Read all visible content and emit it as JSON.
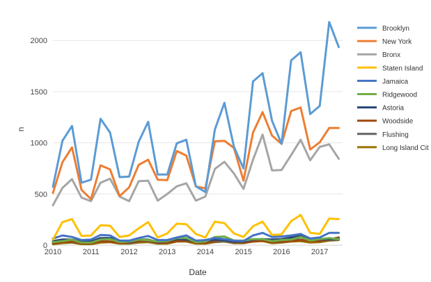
{
  "chart_data": {
    "type": "line",
    "xlabel": "Date",
    "ylabel": "n",
    "xlim": [
      2010.0,
      2017.6
    ],
    "ylim": [
      0,
      2300
    ],
    "x_ticks": [
      2010,
      2011,
      2012,
      2013,
      2014,
      2015,
      2016,
      2017
    ],
    "x_tick_labels": [
      "2010",
      "2011",
      "2012",
      "2013",
      "2014",
      "2015",
      "2016",
      "2017"
    ],
    "y_ticks": [
      0,
      500,
      1000,
      1500,
      2000
    ],
    "y_tick_labels": [
      "0",
      "500",
      "1000",
      "1500",
      "2000"
    ],
    "grid": "horizontal",
    "legend_position": "right",
    "x": [
      2010.0,
      2010.25,
      2010.5,
      2010.75,
      2011.0,
      2011.25,
      2011.5,
      2011.75,
      2012.0,
      2012.25,
      2012.5,
      2012.75,
      2013.0,
      2013.25,
      2013.5,
      2013.75,
      2014.0,
      2014.25,
      2014.5,
      2014.75,
      2015.0,
      2015.25,
      2015.5,
      2015.75,
      2016.0,
      2016.25,
      2016.5,
      2016.75,
      2017.0,
      2017.25,
      2017.5
    ],
    "series": [
      {
        "name": "Brooklyn",
        "color": "#5b9bd5",
        "values": [
          570,
          1020,
          1165,
          610,
          640,
          1235,
          1100,
          665,
          670,
          1010,
          1205,
          690,
          690,
          995,
          1030,
          575,
          520,
          1130,
          1390,
          960,
          750,
          1600,
          1680,
          1215,
          990,
          1805,
          1885,
          1280,
          1360,
          2180,
          1935
        ]
      },
      {
        "name": "New York",
        "color": "#ed7d31",
        "values": [
          510,
          810,
          955,
          540,
          450,
          780,
          740,
          480,
          565,
          785,
          835,
          640,
          635,
          920,
          875,
          575,
          555,
          1015,
          1020,
          950,
          630,
          1100,
          1300,
          1070,
          990,
          1310,
          1345,
          935,
          1005,
          1145,
          1145
        ]
      },
      {
        "name": "Bronx",
        "color": "#a5a5a5",
        "values": [
          390,
          560,
          645,
          465,
          430,
          610,
          650,
          475,
          430,
          625,
          630,
          435,
          500,
          575,
          605,
          435,
          475,
          745,
          815,
          700,
          550,
          835,
          1080,
          730,
          735,
          880,
          1030,
          830,
          960,
          985,
          845
        ]
      },
      {
        "name": "Staten Island",
        "color": "#ffc000",
        "values": [
          55,
          225,
          255,
          90,
          95,
          195,
          190,
          80,
          95,
          165,
          225,
          75,
          115,
          210,
          205,
          110,
          75,
          230,
          215,
          115,
          80,
          185,
          230,
          100,
          105,
          235,
          295,
          120,
          110,
          260,
          255
        ]
      },
      {
        "name": "Jamaica",
        "color": "#4472c4",
        "values": [
          65,
          95,
          80,
          50,
          55,
          100,
          95,
          45,
          45,
          70,
          90,
          50,
          50,
          75,
          95,
          45,
          50,
          70,
          60,
          45,
          40,
          95,
          120,
          80,
          85,
          95,
          110,
          65,
          75,
          120,
          120
        ]
      },
      {
        "name": "Ridgewood",
        "color": "#70ad47",
        "values": [
          30,
          40,
          55,
          25,
          25,
          55,
          60,
          30,
          35,
          55,
          50,
          35,
          40,
          70,
          70,
          30,
          35,
          80,
          85,
          45,
          45,
          60,
          60,
          40,
          50,
          55,
          80,
          45,
          60,
          70,
          60
        ]
      },
      {
        "name": "Astoria",
        "color": "#264478",
        "values": [
          40,
          55,
          55,
          35,
          35,
          70,
          70,
          40,
          30,
          55,
          55,
          30,
          40,
          60,
          55,
          35,
          40,
          55,
          50,
          35,
          35,
          55,
          60,
          55,
          60,
          75,
          90,
          55,
          55,
          60,
          65
        ]
      },
      {
        "name": "Woodside",
        "color": "#9e480e",
        "values": [
          15,
          30,
          35,
          20,
          20,
          35,
          35,
          20,
          25,
          40,
          45,
          20,
          25,
          40,
          45,
          25,
          20,
          45,
          55,
          30,
          25,
          35,
          45,
          30,
          35,
          40,
          50,
          40,
          40,
          55,
          75
        ]
      },
      {
        "name": "Flushing",
        "color": "#636363",
        "values": [
          20,
          35,
          30,
          20,
          20,
          40,
          35,
          25,
          20,
          35,
          40,
          20,
          25,
          40,
          45,
          25,
          25,
          35,
          40,
          25,
          25,
          45,
          50,
          30,
          30,
          50,
          55,
          40,
          45,
          50,
          55
        ]
      },
      {
        "name": "Long Island Cit",
        "color": "#997300",
        "values": [
          10,
          20,
          25,
          10,
          10,
          25,
          30,
          15,
          15,
          25,
          30,
          15,
          15,
          35,
          35,
          15,
          15,
          30,
          35,
          20,
          20,
          35,
          40,
          20,
          25,
          35,
          40,
          25,
          30,
          45,
          50
        ]
      }
    ]
  }
}
